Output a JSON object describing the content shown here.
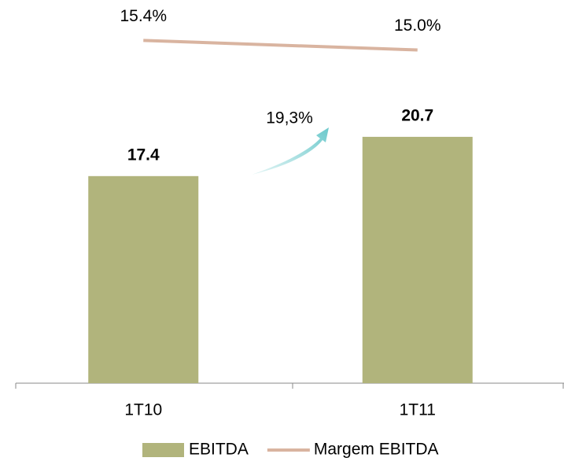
{
  "chart_data": {
    "type": "bar",
    "categories": [
      "1T10",
      "1T11"
    ],
    "series": [
      {
        "name": "EBITDA",
        "type": "bar",
        "color": "#b1b47c",
        "values": [
          17.4,
          20.7
        ]
      },
      {
        "name": "Margem EBITDA",
        "type": "line",
        "axis": "y2",
        "color": "#d9b4a0",
        "values": [
          15.4,
          15.0
        ],
        "value_labels": [
          "15.4%",
          "15.0%"
        ]
      }
    ],
    "annotation": "19,3%",
    "ylim": [
      0,
      32
    ],
    "y2lim": [
      1,
      17
    ],
    "legend": "bottom"
  }
}
